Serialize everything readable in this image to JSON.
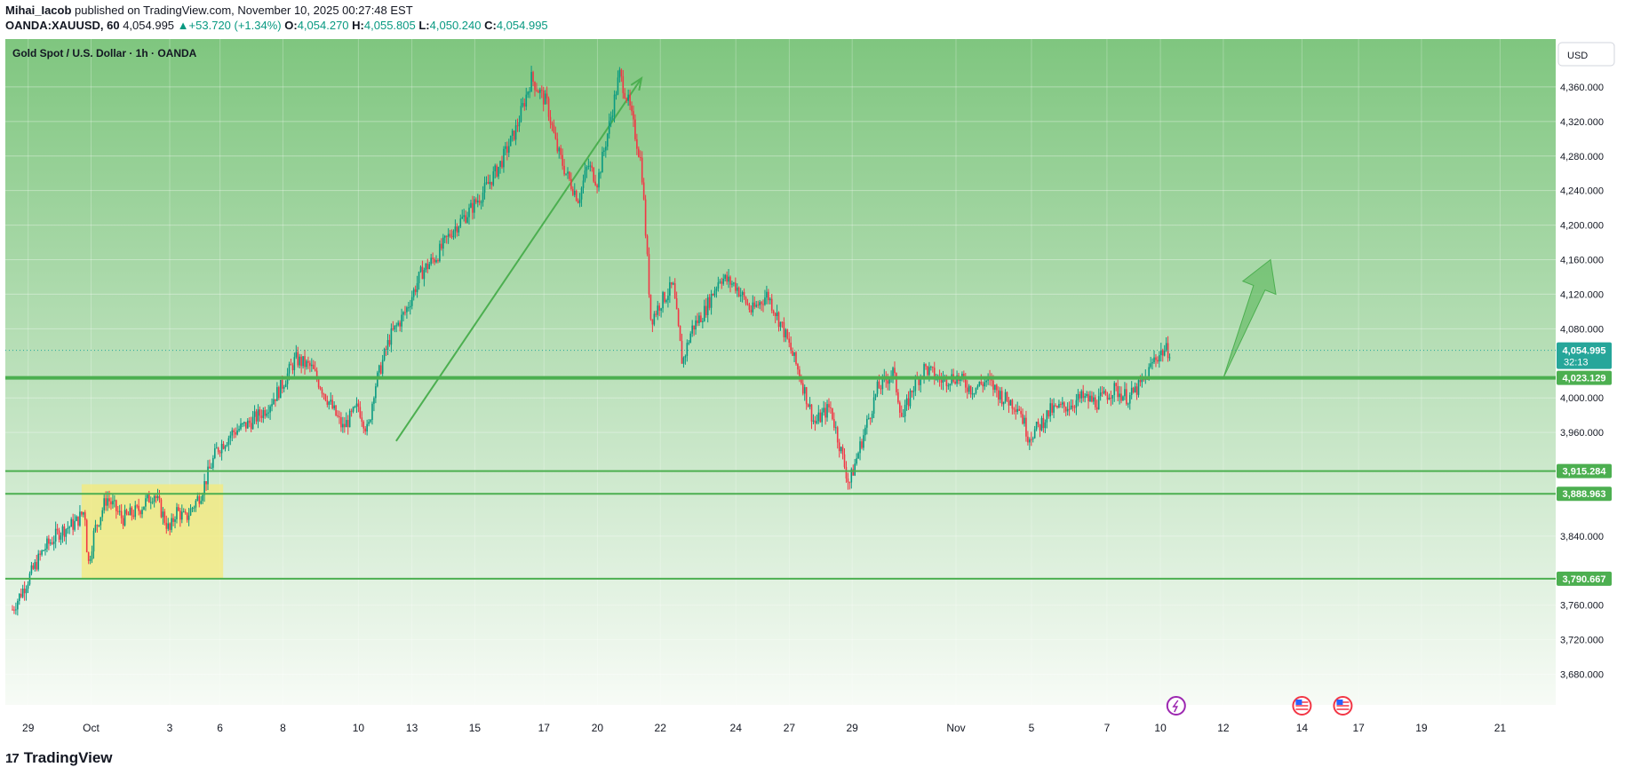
{
  "header": {
    "author": "Mihai_Iacob",
    "published": "published on TradingView.com, November 10, 2025 00:27:48 EST",
    "symbol": "OANDA:XAUUSD, 60",
    "last": "4,054.995",
    "change": "+53.720 (+1.34%)",
    "o_label": "O:",
    "o": "4,054.270",
    "h_label": "H:",
    "h": "4,055.805",
    "l_label": "L:",
    "l": "4,050.240",
    "c_label": "C:",
    "c": "4,054.995"
  },
  "footer": {
    "brand": "TradingView",
    "logo": "17"
  },
  "colors": {
    "up": "#089981",
    "down": "#f23645",
    "line": "#4caf50",
    "bg_top": "#7fc67f",
    "bg_bottom": "#f7fbf6",
    "box": "#f5e97a"
  },
  "chart_data": {
    "type": "candlestick",
    "title": "Gold Spot / U.S. Dollar · 1h · OANDA",
    "currency": "USD",
    "y_ticks": [
      "4,360.000",
      "4,320.000",
      "4,280.000",
      "4,240.000",
      "4,200.000",
      "4,160.000",
      "4,120.000",
      "4,080.000",
      "4,000.000",
      "3,960.000",
      "3,840.000",
      "3,760.000",
      "3,720.000",
      "3,680.000"
    ],
    "y_tick_values": [
      4360,
      4320,
      4280,
      4240,
      4200,
      4160,
      4120,
      4080,
      4000,
      3960,
      3840,
      3760,
      3720,
      3680
    ],
    "ylim": [
      3660,
      4400
    ],
    "x_ticks": [
      "29",
      "Oct",
      "3",
      "6",
      "8",
      "10",
      "13",
      "15",
      "17",
      "20",
      "22",
      "24",
      "27",
      "29",
      "Nov",
      "5",
      "7",
      "10",
      "12",
      "14",
      "17",
      "19",
      "21"
    ],
    "x_tick_index": [
      0.5,
      2.5,
      5,
      6.6,
      8.6,
      11,
      12.7,
      14.7,
      16.9,
      18.6,
      20.6,
      23,
      24.7,
      26.7,
      30,
      32.4,
      34.8,
      36.5,
      38.5,
      41,
      42.8,
      44.8,
      47.3
    ],
    "levels": [
      {
        "label": "4,023.129",
        "value": 4023.129,
        "thick": true
      },
      {
        "label": "3,915.284",
        "value": 3915.284,
        "thick": false
      },
      {
        "label": "3,888.963",
        "value": 3888.963,
        "thick": false
      },
      {
        "label": "3,790.667",
        "value": 3790.667,
        "thick": false
      }
    ],
    "current_price": {
      "label": "4,054.995",
      "value": 4054.995,
      "countdown": "32:13"
    },
    "series": [
      {
        "name": "XAUUSD close (x = trading-day index)",
        "x": [
          0,
          0.5,
          1,
          1.5,
          2,
          2.3,
          2.4,
          2.6,
          3,
          3.5,
          4,
          4.5,
          5,
          5.2,
          5.5,
          6,
          6.5,
          7,
          7.5,
          8,
          8.5,
          9,
          9.5,
          10,
          10.5,
          11,
          11.3,
          11.5,
          12,
          12.5,
          13,
          13.5,
          14,
          14.5,
          15,
          15.5,
          16,
          16.5,
          17,
          17.3,
          17.6,
          18,
          18.3,
          18.6,
          19,
          19.3,
          19.6,
          20,
          20.3,
          20.6,
          21,
          21.3,
          21.6,
          22,
          22.5,
          23,
          23.5,
          24,
          24.5,
          25,
          25.5,
          26,
          26.3,
          26.6,
          26.8,
          27,
          27.5,
          28,
          28.3,
          28.6,
          29,
          29.5,
          30,
          30.5,
          31,
          31.5,
          32,
          32.3,
          32.6,
          33,
          33.5,
          34,
          34.5,
          35,
          35.5,
          36,
          36.3,
          36.6,
          36.8
        ],
        "y": [
          3755,
          3790,
          3825,
          3845,
          3855,
          3870,
          3805,
          3845,
          3885,
          3860,
          3870,
          3890,
          3845,
          3870,
          3860,
          3890,
          3940,
          3960,
          3970,
          3985,
          4010,
          4045,
          4035,
          4000,
          3965,
          3990,
          3960,
          4010,
          4070,
          4100,
          4145,
          4165,
          4195,
          4215,
          4240,
          4270,
          4310,
          4370,
          4340,
          4290,
          4260,
          4230,
          4270,
          4250,
          4320,
          4375,
          4340,
          4270,
          4090,
          4110,
          4130,
          4040,
          4080,
          4100,
          4140,
          4130,
          4100,
          4120,
          4080,
          4030,
          3970,
          3990,
          3945,
          3900,
          3925,
          3950,
          4010,
          4030,
          3975,
          4010,
          4035,
          4020,
          4025,
          4010,
          4020,
          4000,
          3990,
          3955,
          3965,
          3985,
          3990,
          4000,
          3995,
          4010,
          4000,
          4020,
          4045,
          4055,
          4055
        ]
      }
    ],
    "annotations": [
      {
        "type": "arrow_line",
        "from": [
          12.2,
          3950
        ],
        "to": [
          20,
          4370
        ]
      },
      {
        "type": "highlight_box",
        "x": [
          2.2,
          6.7
        ],
        "y": [
          3790,
          3900
        ]
      },
      {
        "type": "future_arrow",
        "from": [
          38.5,
          4023
        ],
        "to": [
          40,
          4160
        ]
      },
      {
        "type": "event_icon",
        "x": 37,
        "kind": "lightning"
      },
      {
        "type": "event_icon",
        "x": 41,
        "kind": "us-flag"
      },
      {
        "type": "event_icon",
        "x": 42.3,
        "kind": "us-flag"
      }
    ]
  }
}
